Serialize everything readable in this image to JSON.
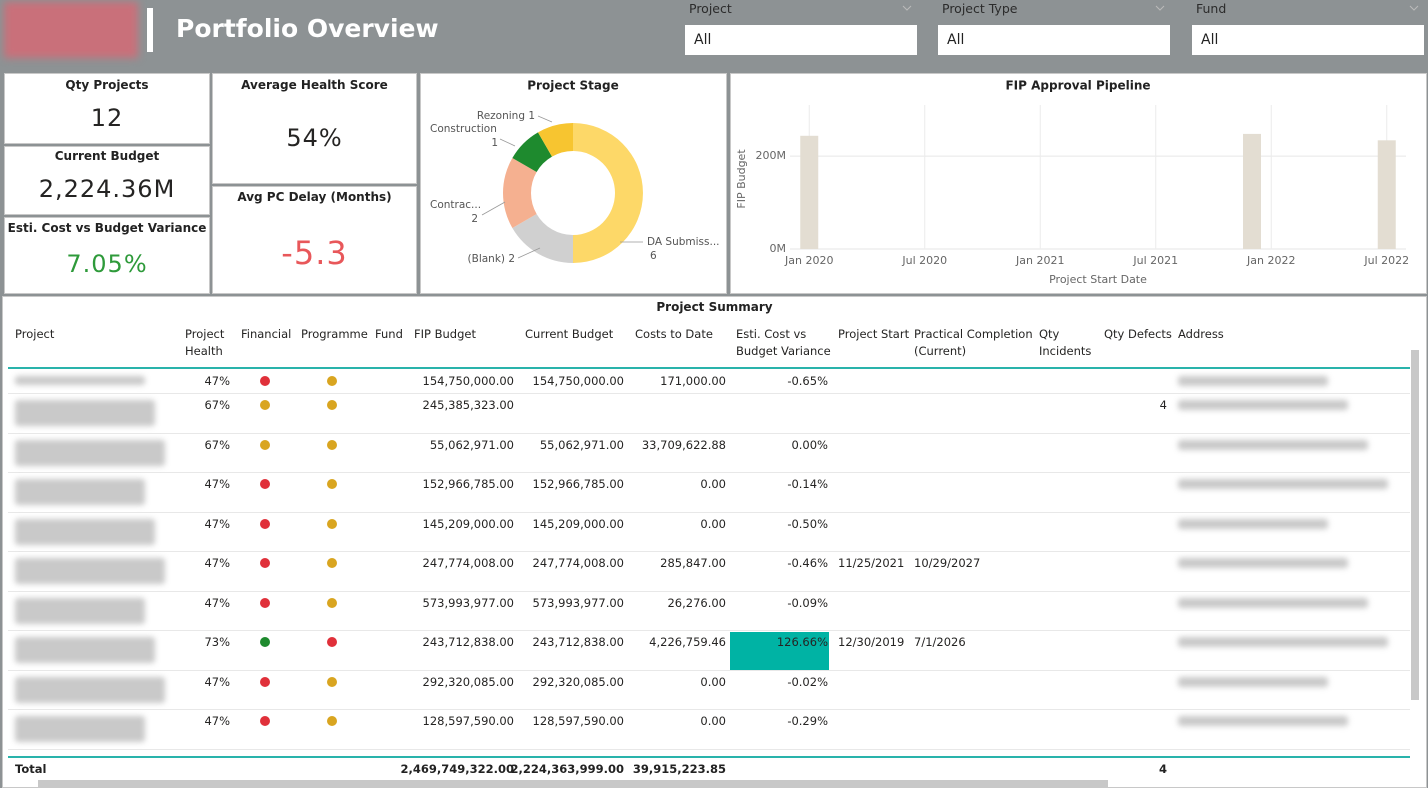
{
  "header": {
    "title": "Portfolio Overview",
    "filters": [
      {
        "label": "Project",
        "value": "All"
      },
      {
        "label": "Project Type",
        "value": "All"
      },
      {
        "label": "Fund",
        "value": "All"
      }
    ]
  },
  "kpis": [
    {
      "label": "Qty Projects",
      "value": "12"
    },
    {
      "label": "Current Budget",
      "value": "2,224.36M"
    },
    {
      "label": "Esti. Cost vs Budget Variance",
      "value": "7.05%",
      "color": "#2e9a3a"
    },
    {
      "label": "Average Health Score",
      "value": "54%"
    },
    {
      "label": "Avg PC Delay (Months)",
      "value": "-5.3",
      "color": "#e8575a"
    }
  ],
  "chart_data": [
    {
      "type": "donut",
      "title": "Project Stage",
      "categories": [
        "DA Submiss...",
        "(Blank)",
        "Contrac...",
        "Construction",
        "Rezoning"
      ],
      "values": [
        6,
        2,
        2,
        1,
        1
      ],
      "colors": [
        "#fdd868",
        "#d0d0d0",
        "#f5b090",
        "#1e8a2e",
        "#f7c530"
      ]
    },
    {
      "type": "bar",
      "title": "FIP Approval Pipeline",
      "x_label": "Project Start Date",
      "y_label": "FIP Budget",
      "x": [
        "2020-01",
        "2021-12",
        "2022-07"
      ],
      "values": [
        243.71,
        247.77,
        234
      ],
      "color": "#e3ddd2",
      "xlim": [
        "2019-12",
        "2022-08"
      ],
      "xticks": [
        {
          "value": "2020-01",
          "label": "Jan 2020"
        },
        {
          "value": "2020-07",
          "label": "Jul 2020"
        },
        {
          "value": "2021-01",
          "label": "Jan 2021"
        },
        {
          "value": "2021-07",
          "label": "Jul 2021"
        },
        {
          "value": "2022-01",
          "label": "Jan 2022"
        },
        {
          "value": "2022-07",
          "label": "Jul 2022"
        }
      ],
      "ylim": [
        0,
        310
      ],
      "yticks": [
        {
          "value": 0,
          "label": "0M"
        },
        {
          "value": 200,
          "label": "200M"
        }
      ],
      "grid": true
    }
  ],
  "table": {
    "title": "Project Summary",
    "columns": [
      "Project",
      "Project Health",
      "Financial",
      "Programme",
      "Fund",
      "FIP Budget",
      "Current Budget",
      "Costs to Date",
      "Esti. Cost vs Budget Variance",
      "Project Start",
      "Practical Completion (Current)",
      "Qty Incidents",
      "Qty Defects",
      "Address"
    ],
    "rows": [
      {
        "health": "47%",
        "financial": "#e0303a",
        "programme": "#d9a520",
        "fip_budget": "154,750,000.00",
        "current_budget": "154,750,000.00",
        "costs_to_date": "171,000.00",
        "variance": "-0.65%"
      },
      {
        "health": "67%",
        "financial": "#d9a520",
        "programme": "#d9a520",
        "fip_budget": "245,385,323.00",
        "qty_defects": "4"
      },
      {
        "health": "67%",
        "financial": "#d9a520",
        "programme": "#d9a520",
        "fip_budget": "55,062,971.00",
        "current_budget": "55,062,971.00",
        "costs_to_date": "33,709,622.88",
        "variance": "0.00%"
      },
      {
        "health": "47%",
        "financial": "#e0303a",
        "programme": "#d9a520",
        "fip_budget": "152,966,785.00",
        "current_budget": "152,966,785.00",
        "costs_to_date": "0.00",
        "variance": "-0.14%"
      },
      {
        "health": "47%",
        "financial": "#e0303a",
        "programme": "#d9a520",
        "fip_budget": "145,209,000.00",
        "current_budget": "145,209,000.00",
        "costs_to_date": "0.00",
        "variance": "-0.50%"
      },
      {
        "health": "47%",
        "financial": "#e0303a",
        "programme": "#d9a520",
        "fip_budget": "247,774,008.00",
        "current_budget": "247,774,008.00",
        "costs_to_date": "285,847.00",
        "variance": "-0.46%",
        "project_start": "11/25/2021",
        "practical_completion": "10/29/2027"
      },
      {
        "health": "47%",
        "financial": "#e0303a",
        "programme": "#d9a520",
        "fip_budget": "573,993,977.00",
        "current_budget": "573,993,977.00",
        "costs_to_date": "26,276.00",
        "variance": "-0.09%"
      },
      {
        "health": "73%",
        "financial": "#1e8a2e",
        "programme": "#e0303a",
        "fip_budget": "243,712,838.00",
        "current_budget": "243,712,838.00",
        "costs_to_date": "4,226,759.46",
        "variance": "126.66%",
        "variance_fill": "#00b3a4",
        "project_start": "12/30/2019",
        "practical_completion": "7/1/2026"
      },
      {
        "health": "47%",
        "financial": "#e0303a",
        "programme": "#d9a520",
        "fip_budget": "292,320,085.00",
        "current_budget": "292,320,085.00",
        "costs_to_date": "0.00",
        "variance": "-0.02%"
      },
      {
        "health": "47%",
        "financial": "#e0303a",
        "programme": "#d9a520",
        "fip_budget": "128,597,590.00",
        "current_budget": "128,597,590.00",
        "costs_to_date": "0.00",
        "variance": "-0.29%"
      }
    ],
    "total": {
      "label": "Total",
      "fip_budget": "2,469,749,322.00",
      "current_budget": "2,224,363,999.00",
      "costs_to_date": "39,915,223.85",
      "qty_defects": "4"
    }
  }
}
